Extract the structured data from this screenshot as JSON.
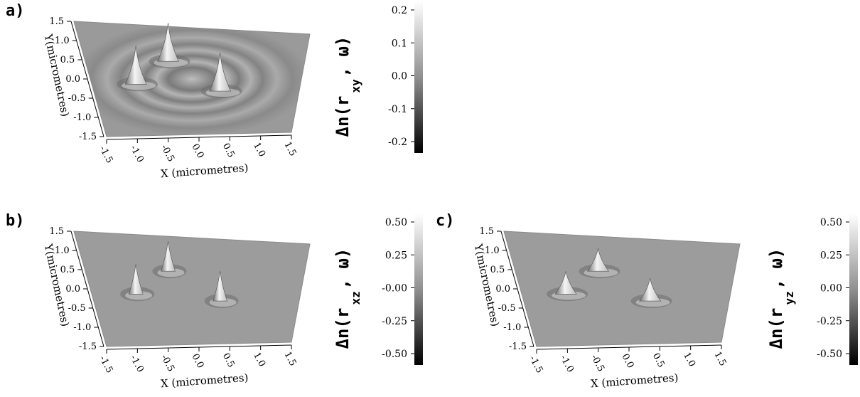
{
  "panels": [
    {
      "label": "a)",
      "xlabel": "X (micrometres)",
      "ylabel": "Y(micrometres)",
      "x_ticks": [
        "-1.5",
        "-1.0",
        "-0.5",
        "0.0",
        "0.5",
        "1.0",
        "1.5"
      ],
      "y_ticks": [
        "1.5",
        "1.0",
        "0.5",
        "0.0",
        "-0.5",
        "-1.0",
        "-1.5"
      ],
      "colorbar_label": "Δn(r",
      "colorbar_sub": "xy",
      "colorbar_suffix": ", ω)",
      "colorbar_ticks": [
        "0.2",
        "0.1",
        "0.0",
        "-0.1",
        "-0.2"
      ]
    },
    {
      "label": "b)",
      "xlabel": "X (micrometres)",
      "ylabel": "Y(micrometres)",
      "x_ticks": [
        "-1.5",
        "-1.0",
        "-0.5",
        "0.0",
        "0.5",
        "1.0",
        "1.5"
      ],
      "y_ticks": [
        "1.5",
        "1.0",
        "0.5",
        "0.0",
        "-0.5",
        "-1.0",
        "-1.5"
      ],
      "colorbar_label": "Δn(r",
      "colorbar_sub": "xz",
      "colorbar_suffix": ", ω)",
      "colorbar_ticks": [
        "0.50",
        "0.25",
        "-0.00",
        "-0.25",
        "-0.50"
      ]
    },
    {
      "label": "c)",
      "xlabel": "X (micrometres)",
      "ylabel": "Y(micrometres)",
      "x_ticks": [
        "-1.5",
        "-1.0",
        "-0.5",
        "0.0",
        "0.5",
        "1.0",
        "1.5"
      ],
      "y_ticks": [
        "1.5",
        "1.0",
        "0.5",
        "0.0",
        "-0.5",
        "-1.0",
        "-1.5"
      ],
      "colorbar_label": "Δn(r",
      "colorbar_sub": "yz",
      "colorbar_suffix": ", ω)",
      "colorbar_ticks": [
        "0.50",
        "0.25",
        "0.00",
        "-0.25",
        "-0.50"
      ]
    }
  ],
  "chart_data": [
    {
      "type": "heatmap",
      "title": "",
      "xlabel": "X (micrometres)",
      "ylabel": "Y(micrometres)",
      "xlim": [
        -1.5,
        1.5
      ],
      "ylim": [
        -1.5,
        1.5
      ],
      "colorbar_range": [
        -0.2,
        0.2
      ],
      "peaks": [
        {
          "x": -0.35,
          "y": 0.65
        },
        {
          "x": -0.85,
          "y": 0.0
        },
        {
          "x": 0.35,
          "y": -0.15
        }
      ]
    },
    {
      "type": "heatmap",
      "title": "",
      "xlabel": "X (micrometres)",
      "ylabel": "Y(micrometres)",
      "xlim": [
        -1.5,
        1.5
      ],
      "ylim": [
        -1.5,
        1.5
      ],
      "colorbar_range": [
        -0.5,
        0.5
      ],
      "peaks": [
        {
          "x": -0.35,
          "y": 0.65
        },
        {
          "x": -0.85,
          "y": 0.0
        },
        {
          "x": 0.35,
          "y": -0.15
        }
      ]
    },
    {
      "type": "heatmap",
      "title": "",
      "xlabel": "X (micrometres)",
      "ylabel": "Y(micrometres)",
      "xlim": [
        -1.5,
        1.5
      ],
      "ylim": [
        -1.5,
        1.5
      ],
      "colorbar_range": [
        -0.5,
        0.5
      ],
      "peaks": [
        {
          "x": -0.35,
          "y": 0.65
        },
        {
          "x": -0.85,
          "y": 0.0
        },
        {
          "x": 0.35,
          "y": -0.15
        }
      ]
    }
  ]
}
